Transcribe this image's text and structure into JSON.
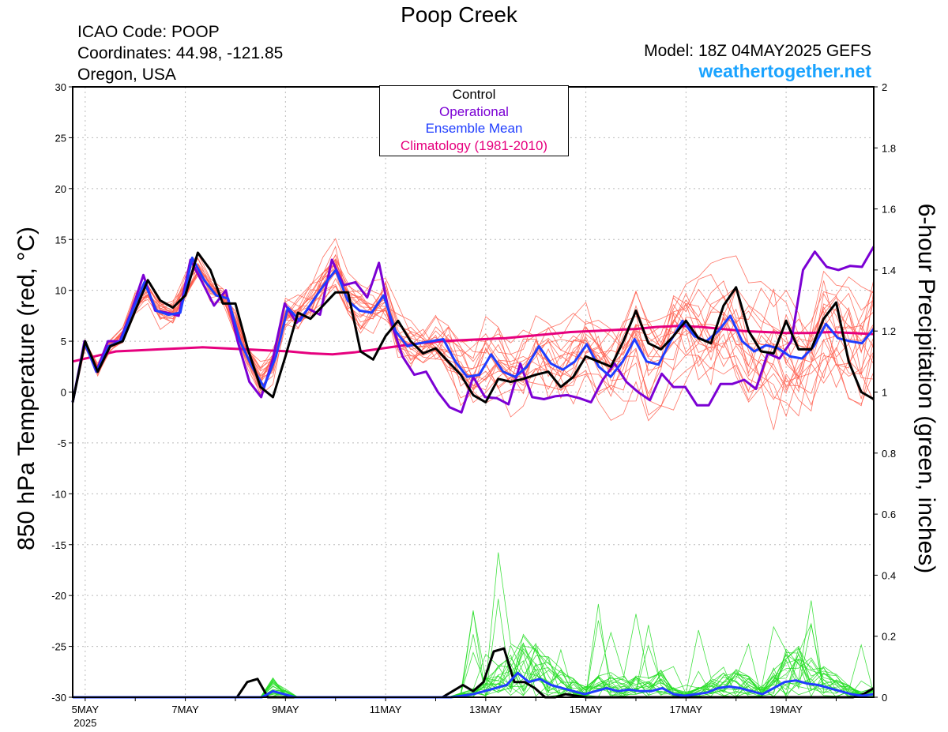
{
  "header": {
    "title": "Poop Creek",
    "icao": "ICAO Code: POOP",
    "coordinates": "Coordinates: 44.98, -121.85",
    "region": "Oregon, USA",
    "model": "Model: 18Z 04MAY2025 GEFS",
    "site": "weathertogether.net"
  },
  "legend": {
    "control": "Control",
    "operational": "Operational",
    "ensemble_mean": "Ensemble Mean",
    "climatology": "Climatology (1981-2010)"
  },
  "colors": {
    "control": "#000000",
    "operational": "#7b00d4",
    "ensemble_mean": "#1f3dff",
    "climatology": "#e6007e",
    "members_temp": "#ff5a4a",
    "members_precip": "#22dd22",
    "site": "#1aa3ff"
  },
  "chart_data": {
    "type": "line",
    "ylabel": "850 hPa Temperature (red, °C)",
    "y2label": "6-hour Precipitation (green, inches)",
    "ylim": [
      -30,
      30
    ],
    "yticks": [
      "30",
      "25",
      "20",
      "15",
      "10",
      "5",
      "0",
      "-5",
      "-10",
      "-15",
      "-20",
      "-25",
      "-30"
    ],
    "y2lim": [
      0,
      2
    ],
    "y2ticks": [
      "2",
      "1.8",
      "1.6",
      "1.4",
      "1.2",
      "1",
      "0.8",
      "0.6",
      "0.4",
      "0.2",
      "0"
    ],
    "xlim_days": [
      4.75,
      20.75
    ],
    "xticks": [
      {
        "day": 5,
        "label": "5MAY",
        "sub": "2025"
      },
      {
        "day": 7,
        "label": "7MAY",
        "sub": ""
      },
      {
        "day": 9,
        "label": "9MAY",
        "sub": ""
      },
      {
        "day": 11,
        "label": "11MAY",
        "sub": ""
      },
      {
        "day": 13,
        "label": "13MAY",
        "sub": ""
      },
      {
        "day": 15,
        "label": "15MAY",
        "sub": ""
      },
      {
        "day": 17,
        "label": "17MAY",
        "sub": ""
      },
      {
        "day": 19,
        "label": "19MAY",
        "sub": ""
      }
    ],
    "step_hours": 6,
    "grid": true,
    "legend_position": "top-center",
    "series": [
      {
        "name": "Control",
        "axis": "temp",
        "values": [
          -1,
          5,
          2,
          4.5,
          5,
          8,
          11,
          9,
          8.3,
          9.5,
          13.7,
          12,
          8.7,
          8.7,
          4.2,
          0.5,
          -0.5,
          3.5,
          7.8,
          7.2,
          8.5,
          9.8,
          9.8,
          4,
          3.2,
          5.5,
          7,
          5,
          3.8,
          4.3,
          3,
          1.7,
          -0.3,
          -1,
          1.3,
          1,
          1.3,
          1.7,
          2,
          0.5,
          1.5,
          3.5,
          3,
          2.5,
          5,
          8,
          4.8,
          4.2,
          5.5,
          7,
          5.3,
          4.8,
          8.5,
          10.3,
          6,
          4,
          3.8,
          7,
          4.2,
          4.2,
          7.2,
          8.8,
          3,
          0,
          -0.7
        ]
      },
      {
        "name": "Operational",
        "axis": "temp",
        "values": [
          -1,
          5,
          2,
          5,
          5,
          8,
          11.5,
          8,
          7.8,
          7.5,
          13,
          10.8,
          8.5,
          10,
          5,
          1,
          -0.5,
          3.3,
          8.7,
          6.8,
          8.2,
          7.6,
          13,
          10.5,
          10.8,
          9.3,
          12.7,
          7,
          3.5,
          1.7,
          2,
          0,
          -1.5,
          -2,
          1.5,
          -0.5,
          -0.6,
          -1.2,
          2.8,
          -0.5,
          -0.7,
          -0.4,
          -0.3,
          -0.6,
          -1,
          1.2,
          2.8,
          1,
          0,
          -0.8,
          1.8,
          0.5,
          0.5,
          -1.3,
          -1.3,
          0.8,
          0.8,
          1.2,
          0.3,
          3.8,
          3.3,
          5,
          12,
          13.8,
          12.3,
          12,
          12.4,
          12.3,
          14.3
        ]
      },
      {
        "name": "Ensemble Mean",
        "axis": "temp",
        "values": [
          -1,
          4.8,
          2,
          4.5,
          5,
          8,
          10.8,
          8,
          7.6,
          7.8,
          13.2,
          11,
          9.5,
          9.2,
          5,
          2.5,
          0.5,
          3.5,
          8.3,
          7,
          8.8,
          10.5,
          12,
          9,
          8,
          7.8,
          9.5,
          6,
          4.5,
          4.8,
          5,
          5.2,
          3,
          1.5,
          1.7,
          3.7,
          2,
          1.5,
          2.5,
          4.5,
          2.8,
          2.2,
          3,
          4.7,
          2.5,
          1.5,
          3,
          5.2,
          3,
          2.7,
          5,
          7,
          5.5,
          5,
          6,
          7.5,
          5,
          4,
          4.6,
          4.3,
          3.5,
          3.3,
          4.5,
          6.7,
          5.3,
          5,
          4.8,
          6.2
        ]
      },
      {
        "name": "Climatology (1981-2010)",
        "axis": "temp",
        "values": [
          3,
          3.5,
          4,
          4.1,
          4.2,
          4.3,
          4.4,
          4.3,
          4.2,
          4.1,
          4,
          3.8,
          3.7,
          3.9,
          4.2,
          4.5,
          4.8,
          5,
          5.1,
          5.2,
          5.3,
          5.5,
          5.7,
          5.9,
          6,
          6.1,
          6.2,
          6.4,
          6.5,
          6.4,
          6.2,
          6,
          5.9,
          5.8,
          5.8,
          5.9,
          5.8,
          5.7
        ]
      },
      {
        "name": "Control precip",
        "axis": "precip",
        "values": [
          0,
          0,
          0,
          0,
          0,
          0,
          0,
          0,
          0,
          0,
          0,
          0,
          0,
          0,
          0,
          0,
          0,
          0.05,
          0.06,
          0,
          0,
          0,
          0,
          0,
          0,
          0,
          0,
          0,
          0,
          0,
          0,
          0,
          0,
          0,
          0,
          0,
          0,
          0.02,
          0.04,
          0.02,
          0.05,
          0.15,
          0.16,
          0.05,
          0.05,
          0.03,
          0,
          0,
          0.01,
          0.005,
          0,
          0,
          0,
          0,
          0,
          0,
          0,
          0,
          0,
          0,
          0,
          0,
          0,
          0,
          0,
          0,
          0,
          0,
          0,
          0,
          0,
          0,
          0,
          0,
          0,
          0,
          0,
          0.01,
          0.03
        ]
      },
      {
        "name": "Ensemble Mean precip",
        "axis": "precip",
        "values": [
          0,
          0,
          0,
          0,
          0,
          0,
          0,
          0,
          0,
          0,
          0,
          0,
          0,
          0,
          0,
          0,
          0,
          0,
          0.02,
          0.01,
          0,
          0,
          0,
          0,
          0,
          0,
          0,
          0,
          0,
          0,
          0,
          0,
          0,
          0,
          0,
          0.005,
          0.01,
          0.02,
          0.03,
          0.04,
          0.08,
          0.05,
          0.06,
          0.04,
          0.03,
          0.02,
          0.01,
          0.02,
          0.03,
          0.02,
          0.025,
          0.02,
          0.02,
          0.03,
          0.01,
          0.005,
          0.01,
          0.015,
          0.03,
          0.035,
          0.03,
          0.02,
          0.01,
          0.03,
          0.05,
          0.055,
          0.045,
          0.04,
          0.03,
          0.02,
          0.01,
          0.005,
          0.01
        ]
      }
    ]
  }
}
